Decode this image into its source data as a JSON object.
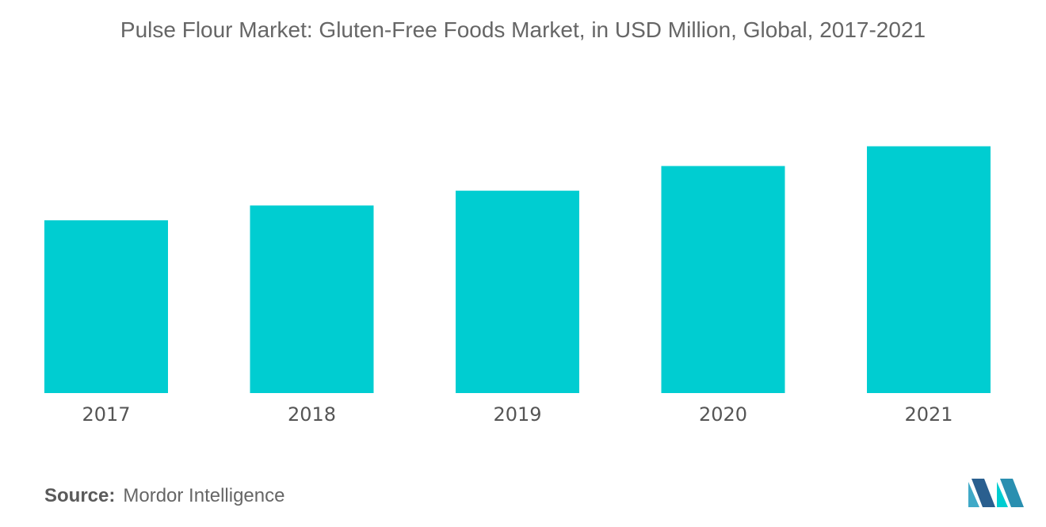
{
  "chart_data": {
    "type": "bar",
    "title": "Pulse Flour Market: Gluten-Free Foods Market,  in USD Million, Global, 2017-2021",
    "categories": [
      "2017",
      "2018",
      "2019",
      "2020",
      "2021"
    ],
    "series": [
      {
        "values": [
          3.5,
          3.8,
          4.1,
          4.6,
          5.0
        ]
      }
    ],
    "xlabel": "",
    "ylabel": "",
    "ylim": [
      0,
      7
    ],
    "grid": false,
    "legend": "none",
    "bar_color": "#00CDD1"
  },
  "footer": {
    "source_label": "Source:",
    "source_value": "Mordor Intelligence"
  },
  "logo": {
    "icon": "mordor-intelligence-logo-icon",
    "colors": [
      "#3FA9C7",
      "#2A5F8F",
      "#00CDD1"
    ]
  }
}
